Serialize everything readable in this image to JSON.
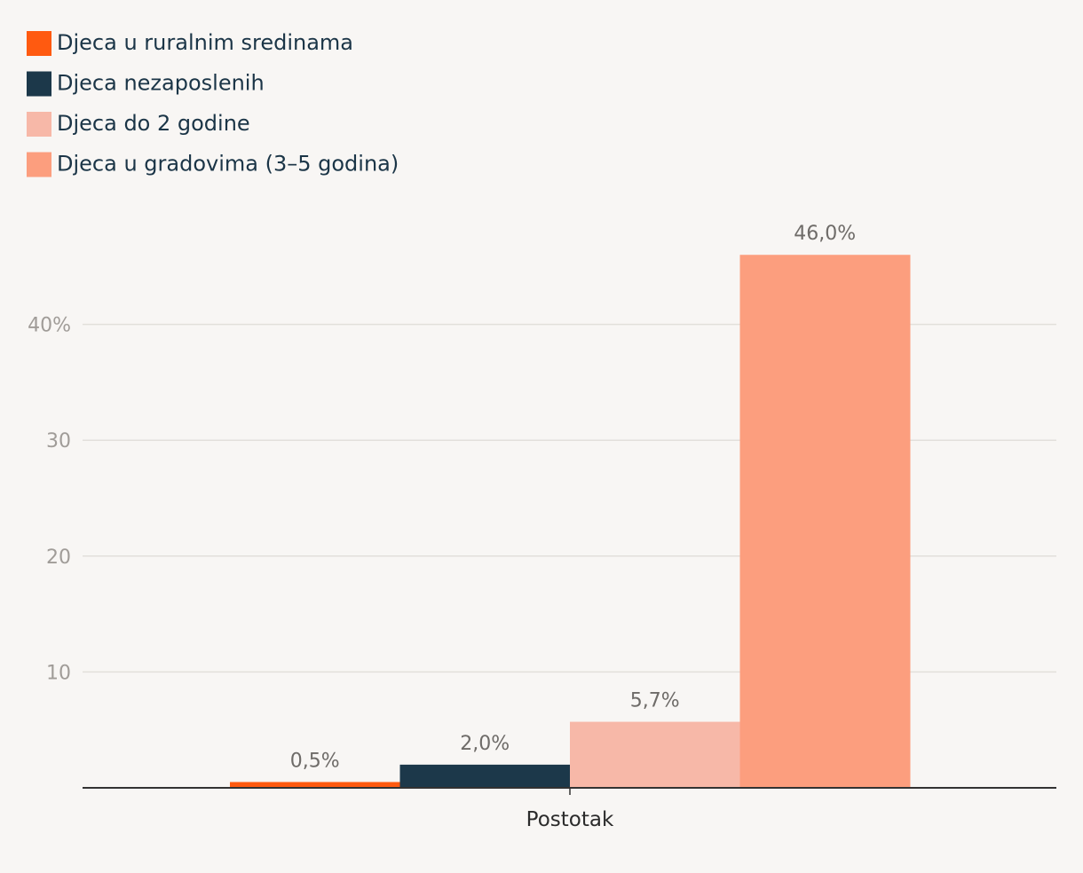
{
  "chart_data": {
    "type": "bar",
    "categories": [
      "Postotak"
    ],
    "series": [
      {
        "name": "Djeca u ruralnim sredinama",
        "values": [
          0.5
        ],
        "label": "0,5%",
        "color": "#ff5a10"
      },
      {
        "name": "Djeca nezaposlenih",
        "values": [
          2.0
        ],
        "label": "2,0%",
        "color": "#1c384a"
      },
      {
        "name": "Djeca do 2 godine",
        "values": [
          5.7
        ],
        "label": "5,7%",
        "color": "#f7b8a8"
      },
      {
        "name": "Djeca u gradovima (3–5 godina)",
        "values": [
          46.0
        ],
        "label": "46,0%",
        "color": "#fc9e7e"
      }
    ],
    "yticks": [
      {
        "value": 10,
        "label": "10"
      },
      {
        "value": 20,
        "label": "20"
      },
      {
        "value": 30,
        "label": "30"
      },
      {
        "value": 40,
        "label": "40%"
      }
    ],
    "ylim": [
      0,
      50
    ],
    "grid": true,
    "legend_position": "top-left"
  }
}
